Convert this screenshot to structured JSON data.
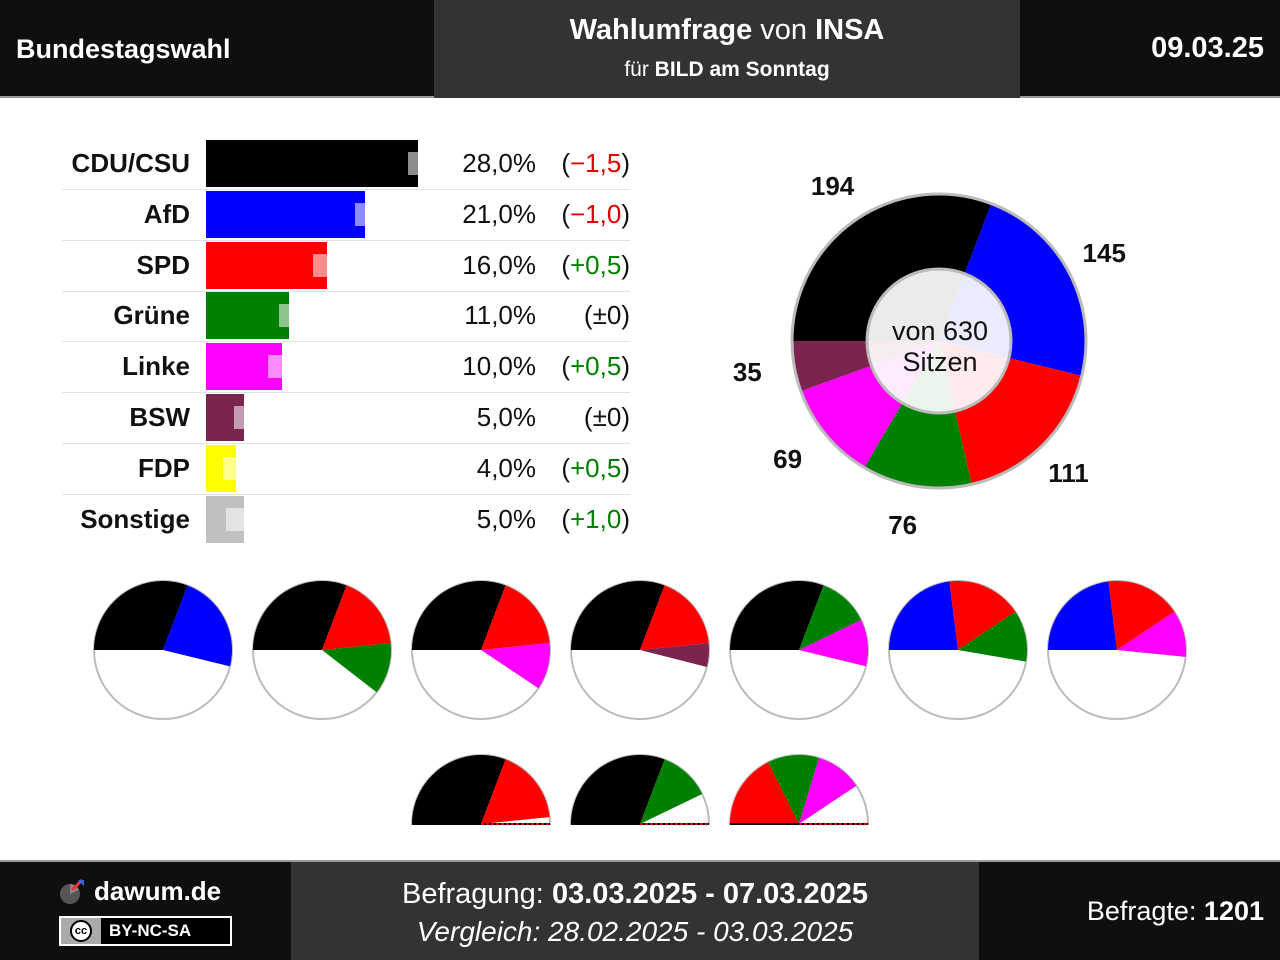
{
  "header": {
    "left": "Bundestagswahl",
    "mid_bold1": "Wahlumfrage",
    "mid_normal1": " von ",
    "mid_bold2": "INSA",
    "mid_normal2": "für ",
    "mid_bold3": "BILD am Sonntag",
    "date": "09.03.25"
  },
  "chart_data": [
    {
      "type": "bar",
      "categories": [
        "CDU/CSU",
        "AfD",
        "SPD",
        "Grüne",
        "Linke",
        "BSW",
        "FDP",
        "Sonstige"
      ],
      "values": [
        28.0,
        21.0,
        16.0,
        11.0,
        10.0,
        5.0,
        4.0,
        5.0
      ],
      "previous_values": [
        29.5,
        22.0,
        15.5,
        11.0,
        9.5,
        5.0,
        3.5,
        4.0
      ],
      "value_labels": [
        "28,0%",
        "21,0%",
        "16,0%",
        "11,0%",
        "10,0%",
        "5,0%",
        "4,0%",
        "5,0%"
      ],
      "change_labels": [
        "−1,5",
        "−1,0",
        "+0,5",
        "±0",
        "+0,5",
        "±0",
        "+0,5",
        "+1,0"
      ],
      "change_signs": [
        "neg",
        "neg",
        "pos",
        "zero",
        "pos",
        "zero",
        "pos",
        "pos"
      ],
      "colors": [
        "#000000",
        "#0000ff",
        "#ff0000",
        "#008000",
        "#ff00ff",
        "#7b2450",
        "#ffff00",
        "#c0c0c0"
      ],
      "xlim": [
        0,
        30
      ]
    },
    {
      "type": "pie",
      "categories": [
        "CDU/CSU",
        "AfD",
        "SPD",
        "Grüne",
        "Linke",
        "BSW"
      ],
      "values": [
        194,
        145,
        111,
        76,
        69,
        35
      ],
      "colors": [
        "#000000",
        "#0000ff",
        "#ff0000",
        "#008000",
        "#ff00ff",
        "#7b2450"
      ],
      "center_line1": "von 630",
      "center_line2": "Sitzen",
      "total": 630
    },
    {
      "type": "pie",
      "title": "",
      "coalitions": [
        {
          "parties": [
            "CDU/CSU",
            "AfD"
          ],
          "values": [
            194,
            145
          ]
        },
        {
          "parties": [
            "CDU/CSU",
            "SPD",
            "Grüne"
          ],
          "values": [
            194,
            111,
            76
          ]
        },
        {
          "parties": [
            "CDU/CSU",
            "SPD",
            "Linke"
          ],
          "values": [
            194,
            111,
            69
          ]
        },
        {
          "parties": [
            "CDU/CSU",
            "SPD",
            "BSW"
          ],
          "values": [
            194,
            111,
            35
          ]
        },
        {
          "parties": [
            "CDU/CSU",
            "Grüne",
            "Linke"
          ],
          "values": [
            194,
            76,
            69
          ]
        },
        {
          "parties": [
            "AfD",
            "SPD",
            "Grüne"
          ],
          "values": [
            145,
            111,
            76
          ]
        },
        {
          "parties": [
            "AfD",
            "SPD",
            "Linke"
          ],
          "values": [
            145,
            111,
            69
          ]
        },
        {
          "parties": [
            "CDU/CSU",
            "SPD"
          ],
          "values": [
            194,
            111
          ]
        },
        {
          "parties": [
            "CDU/CSU",
            "Grüne"
          ],
          "values": [
            194,
            76
          ]
        },
        {
          "parties": [
            "SPD",
            "Grüne",
            "Linke"
          ],
          "values": [
            111,
            76,
            69
          ]
        }
      ],
      "total": 630
    }
  ],
  "footer": {
    "brand": "dawum.de",
    "license": "BY-NC-SA",
    "survey_label": "Befragung: ",
    "survey_dates": "03.03.2025 - 07.03.2025",
    "compare_label": "Vergleich: ",
    "compare_dates": "28.02.2025 - 03.03.2025",
    "respondents_label": "Befragte: ",
    "respondents_value": "1201"
  }
}
